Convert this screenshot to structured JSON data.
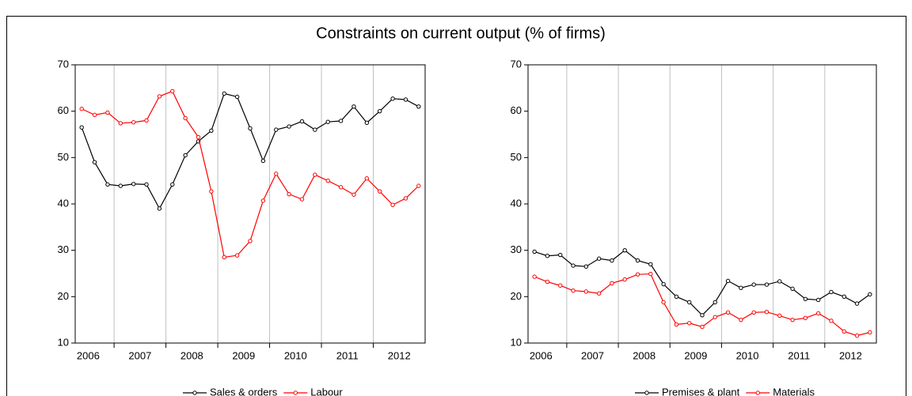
{
  "title": "Constraints on current output (% of firms)",
  "chart_data": [
    {
      "type": "line",
      "x": [
        2006.375,
        2006.625,
        2006.875,
        2007.125,
        2007.375,
        2007.625,
        2007.875,
        2008.125,
        2008.375,
        2008.625,
        2008.875,
        2009.125,
        2009.375,
        2009.625,
        2009.875,
        2010.125,
        2010.375,
        2010.625,
        2010.875,
        2011.125,
        2011.375,
        2011.625,
        2011.875,
        2012.125,
        2012.375,
        2012.625,
        2012.875
      ],
      "series": [
        {
          "name": "Sales & orders",
          "color": "#000000",
          "values": [
            56.5,
            49,
            44.2,
            43.9,
            44.3,
            44.2,
            39,
            44.2,
            50.5,
            53.5,
            55.8,
            63.8,
            63.1,
            56.3,
            49.3,
            56,
            56.7,
            57.8,
            56,
            57.7,
            57.9,
            61,
            57.5,
            60,
            62.7,
            62.5,
            61
          ]
        },
        {
          "name": "Labour",
          "color": "#ff0000",
          "values": [
            60.5,
            59.2,
            59.7,
            57.4,
            57.6,
            58,
            63.2,
            64.3,
            58.5,
            54.4,
            42.7,
            28.5,
            28.9,
            32,
            40.7,
            46.5,
            42.1,
            41,
            46.3,
            45,
            43.6,
            42,
            45.5,
            42.7,
            39.8,
            41.2,
            43.9
          ]
        }
      ],
      "xlim": [
        2006.25,
        2013
      ],
      "xticks": [
        {
          "value": 2006.5,
          "label": "2006"
        },
        {
          "value": 2007.5,
          "label": "2007"
        },
        {
          "value": 2008.5,
          "label": "2008"
        },
        {
          "value": 2009.5,
          "label": "2009"
        },
        {
          "value": 2010.5,
          "label": "2010"
        },
        {
          "value": 2011.5,
          "label": "2011"
        },
        {
          "value": 2012.5,
          "label": "2012"
        }
      ],
      "xgrid": [
        2007,
        2008,
        2009,
        2010,
        2011,
        2012
      ],
      "ylim": [
        10,
        70
      ],
      "yticks": [
        10,
        20,
        30,
        40,
        50,
        60,
        70
      ],
      "grid": true
    },
    {
      "type": "line",
      "x": [
        2006.375,
        2006.625,
        2006.875,
        2007.125,
        2007.375,
        2007.625,
        2007.875,
        2008.125,
        2008.375,
        2008.625,
        2008.875,
        2009.125,
        2009.375,
        2009.625,
        2009.875,
        2010.125,
        2010.375,
        2010.625,
        2010.875,
        2011.125,
        2011.375,
        2011.625,
        2011.875,
        2012.125,
        2012.375,
        2012.625,
        2012.875
      ],
      "series": [
        {
          "name": "Premises & plant",
          "color": "#000000",
          "values": [
            29.7,
            28.8,
            29,
            26.7,
            26.5,
            28.2,
            27.8,
            30,
            27.8,
            27,
            22.7,
            20,
            18.8,
            16,
            18.8,
            23.4,
            21.9,
            22.6,
            22.6,
            23.3,
            21.7,
            19.5,
            19.3,
            21,
            20,
            18.5,
            20.5
          ]
        },
        {
          "name": "Materials",
          "color": "#ff0000",
          "values": [
            24.3,
            23.2,
            22.4,
            21.3,
            21.1,
            20.7,
            22.9,
            23.7,
            24.8,
            24.9,
            18.8,
            14,
            14.3,
            13.5,
            15.6,
            16.6,
            15,
            16.6,
            16.7,
            15.9,
            15,
            15.4,
            16.4,
            14.8,
            12.5,
            11.6,
            12.3
          ]
        }
      ],
      "xlim": [
        2006.25,
        2013
      ],
      "xticks": [
        {
          "value": 2006.5,
          "label": "2006"
        },
        {
          "value": 2007.5,
          "label": "2007"
        },
        {
          "value": 2008.5,
          "label": "2008"
        },
        {
          "value": 2009.5,
          "label": "2009"
        },
        {
          "value": 2010.5,
          "label": "2010"
        },
        {
          "value": 2011.5,
          "label": "2011"
        },
        {
          "value": 2012.5,
          "label": "2012"
        }
      ],
      "xgrid": [
        2007,
        2008,
        2009,
        2010,
        2011,
        2012
      ],
      "ylim": [
        10,
        70
      ],
      "yticks": [
        10,
        20,
        30,
        40,
        50,
        60,
        70
      ],
      "grid": true
    }
  ]
}
